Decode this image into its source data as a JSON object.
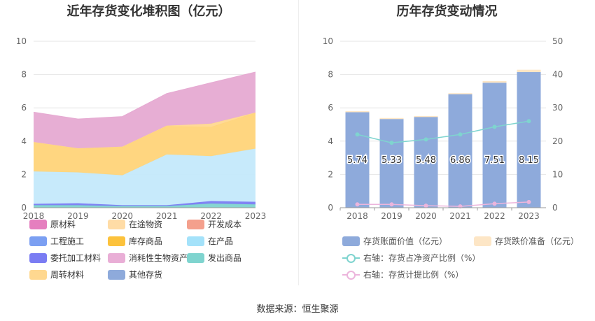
{
  "left": {
    "title": "近年存货变化堆积图（亿元）",
    "legend": [
      {
        "label": "原材料",
        "color": "#e57fbf"
      },
      {
        "label": "在途物资",
        "color": "#ffdca6"
      },
      {
        "label": "开发成本",
        "color": "#f4a08d"
      },
      {
        "label": "工程施工",
        "color": "#7b9ff2"
      },
      {
        "label": "库存商品",
        "color": "#fcc23c"
      },
      {
        "label": "在产品",
        "color": "#a4e2fa"
      },
      {
        "label": "委托加工材料",
        "color": "#7a7cf3"
      },
      {
        "label": "消耗性生物资产",
        "color": "#e9aed6"
      },
      {
        "label": "发出商品",
        "color": "#7fd4cf"
      },
      {
        "label": "周转材料",
        "color": "#ffd890"
      },
      {
        "label": "其他存货",
        "color": "#8eaadb"
      }
    ]
  },
  "right": {
    "title": "历年存货变动情况",
    "legend": [
      {
        "label": "存货账面价值（亿元）",
        "color": "#8eaadb",
        "kind": "bar"
      },
      {
        "label": "存货跌价准备（亿元）",
        "color": "#fde6c6",
        "kind": "bar"
      },
      {
        "label": "右轴：存货占净资产比例（%）",
        "color": "#7fd4cf",
        "kind": "line"
      },
      {
        "label": "右轴：存货计提比例（%）",
        "color": "#ecb5dc",
        "kind": "line"
      }
    ]
  },
  "source": "数据来源：恒生聚源",
  "chart_data": [
    {
      "type": "area",
      "title": "近年存货变化堆积图（亿元）",
      "x": [
        "2018",
        "2019",
        "2020",
        "2021",
        "2022",
        "2023"
      ],
      "ylim": [
        0,
        10
      ],
      "yticks": [
        0,
        2,
        4,
        6,
        8,
        10
      ],
      "grid": true,
      "legend_position": "bottom",
      "series": [
        {
          "name": "发出商品",
          "color": "#7fd4cf",
          "values": [
            0.15,
            0.15,
            0.1,
            0.1,
            0.25,
            0.2
          ]
        },
        {
          "name": "委托加工材料",
          "color": "#7a7cf3",
          "values": [
            0.08,
            0.12,
            0.05,
            0.05,
            0.15,
            0.15
          ]
        },
        {
          "name": "在产品",
          "color": "#c4e9fb",
          "values": [
            1.95,
            1.85,
            1.8,
            3.05,
            2.7,
            3.2
          ]
        },
        {
          "name": "库存商品",
          "color": "#ffd479",
          "values": [
            1.75,
            1.43,
            1.7,
            1.7,
            1.75,
            2.15
          ]
        },
        {
          "name": "周转材料",
          "color": "#ffd890",
          "values": [
            0.02,
            0.02,
            0.02,
            0.03,
            0.2,
            0.02
          ]
        },
        {
          "name": "原材料",
          "color": "#e6aad2",
          "values": [
            1.79,
            1.76,
            1.81,
            1.93,
            2.46,
            2.43
          ]
        }
      ]
    },
    {
      "type": "bar",
      "title": "历年存货变动情况",
      "categories": [
        "2018",
        "2019",
        "2020",
        "2021",
        "2022",
        "2023"
      ],
      "ylim": [
        0,
        10
      ],
      "yticks": [
        0,
        2,
        4,
        6,
        8,
        10
      ],
      "y2lim": [
        0,
        50
      ],
      "y2ticks": [
        0,
        10,
        20,
        30,
        40,
        50
      ],
      "series": [
        {
          "name": "存货账面价值（亿元）",
          "color": "#8eaadb",
          "values": [
            5.74,
            5.33,
            5.48,
            6.86,
            7.51,
            8.15
          ],
          "labels": [
            "5.74",
            "5.33",
            "5.48",
            "6.86",
            "7.51",
            "8.15"
          ]
        },
        {
          "name": "存货跌价准备（亿元）",
          "color": "#fde6c6",
          "values": [
            0.06,
            0.06,
            0.03,
            0.02,
            0.1,
            0.14
          ]
        },
        {
          "name": "右轴：存货占净资产比例（%）",
          "color": "#7fd4cf",
          "axis": "right",
          "type": "line",
          "values": [
            22.0,
            19.5,
            20.5,
            22.0,
            24.3,
            26.0
          ]
        },
        {
          "name": "右轴：存货计提比例（%）",
          "color": "#ecb5dc",
          "axis": "right",
          "type": "line",
          "values": [
            1.0,
            1.0,
            0.6,
            0.4,
            1.2,
            1.7
          ]
        }
      ]
    }
  ]
}
